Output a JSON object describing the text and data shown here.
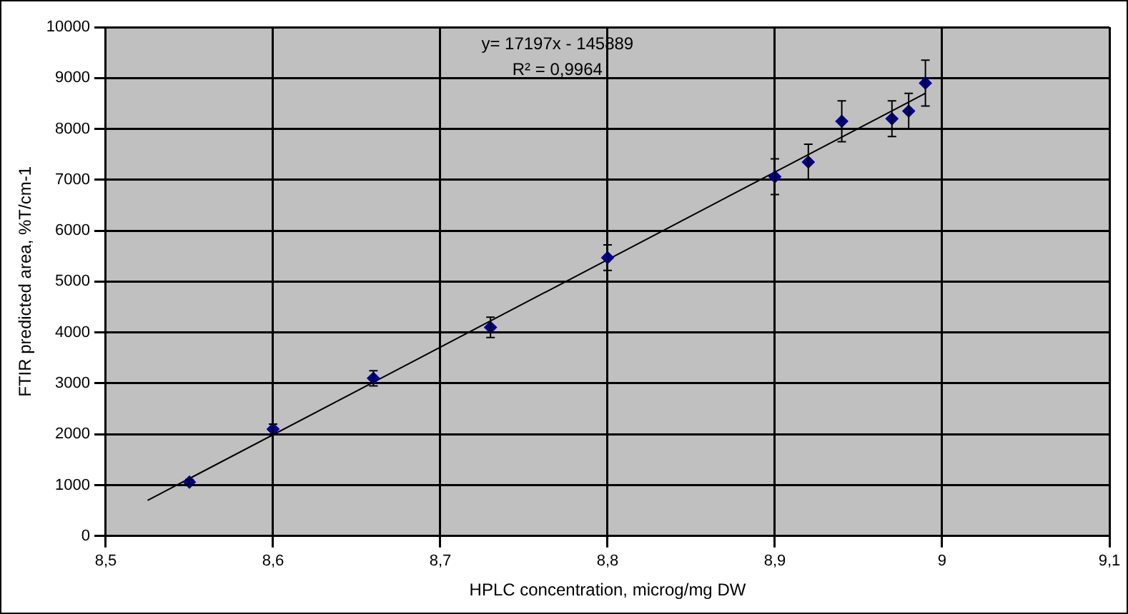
{
  "chart_data": {
    "type": "scatter",
    "xlabel": "HPLC concentration, microg/mg DW",
    "ylabel": "FTIR predicted area, %T/cm-1",
    "annotations": [
      "y= 17197x - 145889",
      "R² = 0,9964"
    ],
    "series": [
      {
        "color": "#00008b",
        "marker": "diamond",
        "x": [
          8.55,
          8.6,
          8.66,
          8.73,
          8.8,
          8.9,
          8.92,
          8.94,
          8.97,
          8.98,
          8.99
        ],
        "values": [
          1060,
          2100,
          3100,
          4100,
          5470,
          7060,
          7350,
          8150,
          8200,
          8350,
          8900
        ],
        "errors": [
          50,
          100,
          150,
          200,
          250,
          350,
          350,
          400,
          350,
          350,
          450
        ]
      },
      {
        "type": "line",
        "color": "#000000",
        "marker": "none",
        "x": [
          8.525,
          8.99
        ],
        "values": [
          700,
          8700
        ]
      }
    ],
    "xlim": [
      8.5,
      9.1
    ],
    "xticks": [
      {
        "value": 8.5,
        "label": "8,5"
      },
      {
        "value": 8.6,
        "label": "8,6"
      },
      {
        "value": 8.7,
        "label": "8,7"
      },
      {
        "value": 8.8,
        "label": "8,8"
      },
      {
        "value": 8.9,
        "label": "8,9"
      },
      {
        "value": 9,
        "label": "9"
      },
      {
        "value": 9.1,
        "label": "9,1"
      }
    ],
    "ylim": [
      0,
      10000
    ],
    "yticks": [
      0,
      1000,
      2000,
      3000,
      4000,
      5000,
      6000,
      7000,
      8000,
      9000,
      10000
    ],
    "grid": true,
    "legend": false
  }
}
